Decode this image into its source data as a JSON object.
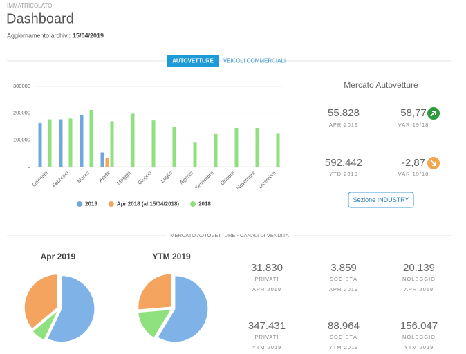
{
  "header": {
    "section": "IMMATRICOLATO",
    "title": "Dashboard",
    "update_label": "Aggiornamento archivi:",
    "update_date": "15/04/2019"
  },
  "tabs": [
    "AUTOVETTURE",
    "VEICOLI COMMERCIALI"
  ],
  "market": {
    "title": "Mercato Autovetture",
    "kpis": [
      {
        "value": "55.828",
        "label": "APR 2019"
      },
      {
        "value": "58,77",
        "label": "VAR 19/18"
      },
      {
        "value": "592.442",
        "label": "YTD 2019"
      },
      {
        "value": "-2,87",
        "label": "VAR 19/18"
      }
    ],
    "button": "Sezione INDUSTRY"
  },
  "channels_title": "MERCATO AUTOVETTURE - CANALI DI VENDITA",
  "channels": [
    {
      "value": "31.830",
      "label": "PRIVATI",
      "period": "APR 2019"
    },
    {
      "value": "3.859",
      "label": "SOCIETÀ",
      "period": "APR 2019"
    },
    {
      "value": "20.139",
      "label": "NOLEGGIO",
      "period": "APR 2019"
    },
    {
      "value": "347.431",
      "label": "PRIVATI",
      "period": "YTM 2019"
    },
    {
      "value": "88.964",
      "label": "SOCIETÀ",
      "period": "YTM 2019"
    },
    {
      "value": "156.047",
      "label": "NOLEGGIO",
      "period": "YTM 2019"
    }
  ],
  "chart_data": [
    {
      "type": "bar",
      "categories": [
        "Gennaio",
        "Febbraio",
        "Marzo",
        "Aprile",
        "Maggio",
        "Giugno",
        "Luglio",
        "Agosto",
        "Settembre",
        "Ottobre",
        "Novembre",
        "Dicembre"
      ],
      "series": [
        {
          "name": "2019",
          "color": "#6fa8dc",
          "values": [
            163000,
            177000,
            193000,
            53000,
            null,
            null,
            null,
            null,
            null,
            null,
            null,
            null
          ]
        },
        {
          "name": "Apr 2018 (al 15/04/2018)",
          "color": "#f6a55b",
          "values": [
            null,
            null,
            null,
            33000,
            null,
            null,
            null,
            null,
            null,
            null,
            null,
            null
          ]
        },
        {
          "name": "2018",
          "color": "#8fe07f",
          "values": [
            177000,
            180000,
            212000,
            170000,
            198000,
            173000,
            150000,
            90000,
            122000,
            145000,
            145000,
            123000
          ]
        }
      ],
      "ylim": [
        0,
        300000
      ],
      "yticks": [
        0,
        100000,
        200000,
        300000
      ],
      "grid": true
    },
    {
      "type": "pie",
      "title": "Apr 2019",
      "values": [
        31830,
        3859,
        20139
      ],
      "colors": [
        "#7fb3e8",
        "#8fe07f",
        "#f4a45e"
      ]
    },
    {
      "type": "pie",
      "title": "YTM 2019",
      "values": [
        347431,
        88964,
        156047
      ],
      "colors": [
        "#7fb3e8",
        "#8fe07f",
        "#f4a45e"
      ]
    }
  ]
}
